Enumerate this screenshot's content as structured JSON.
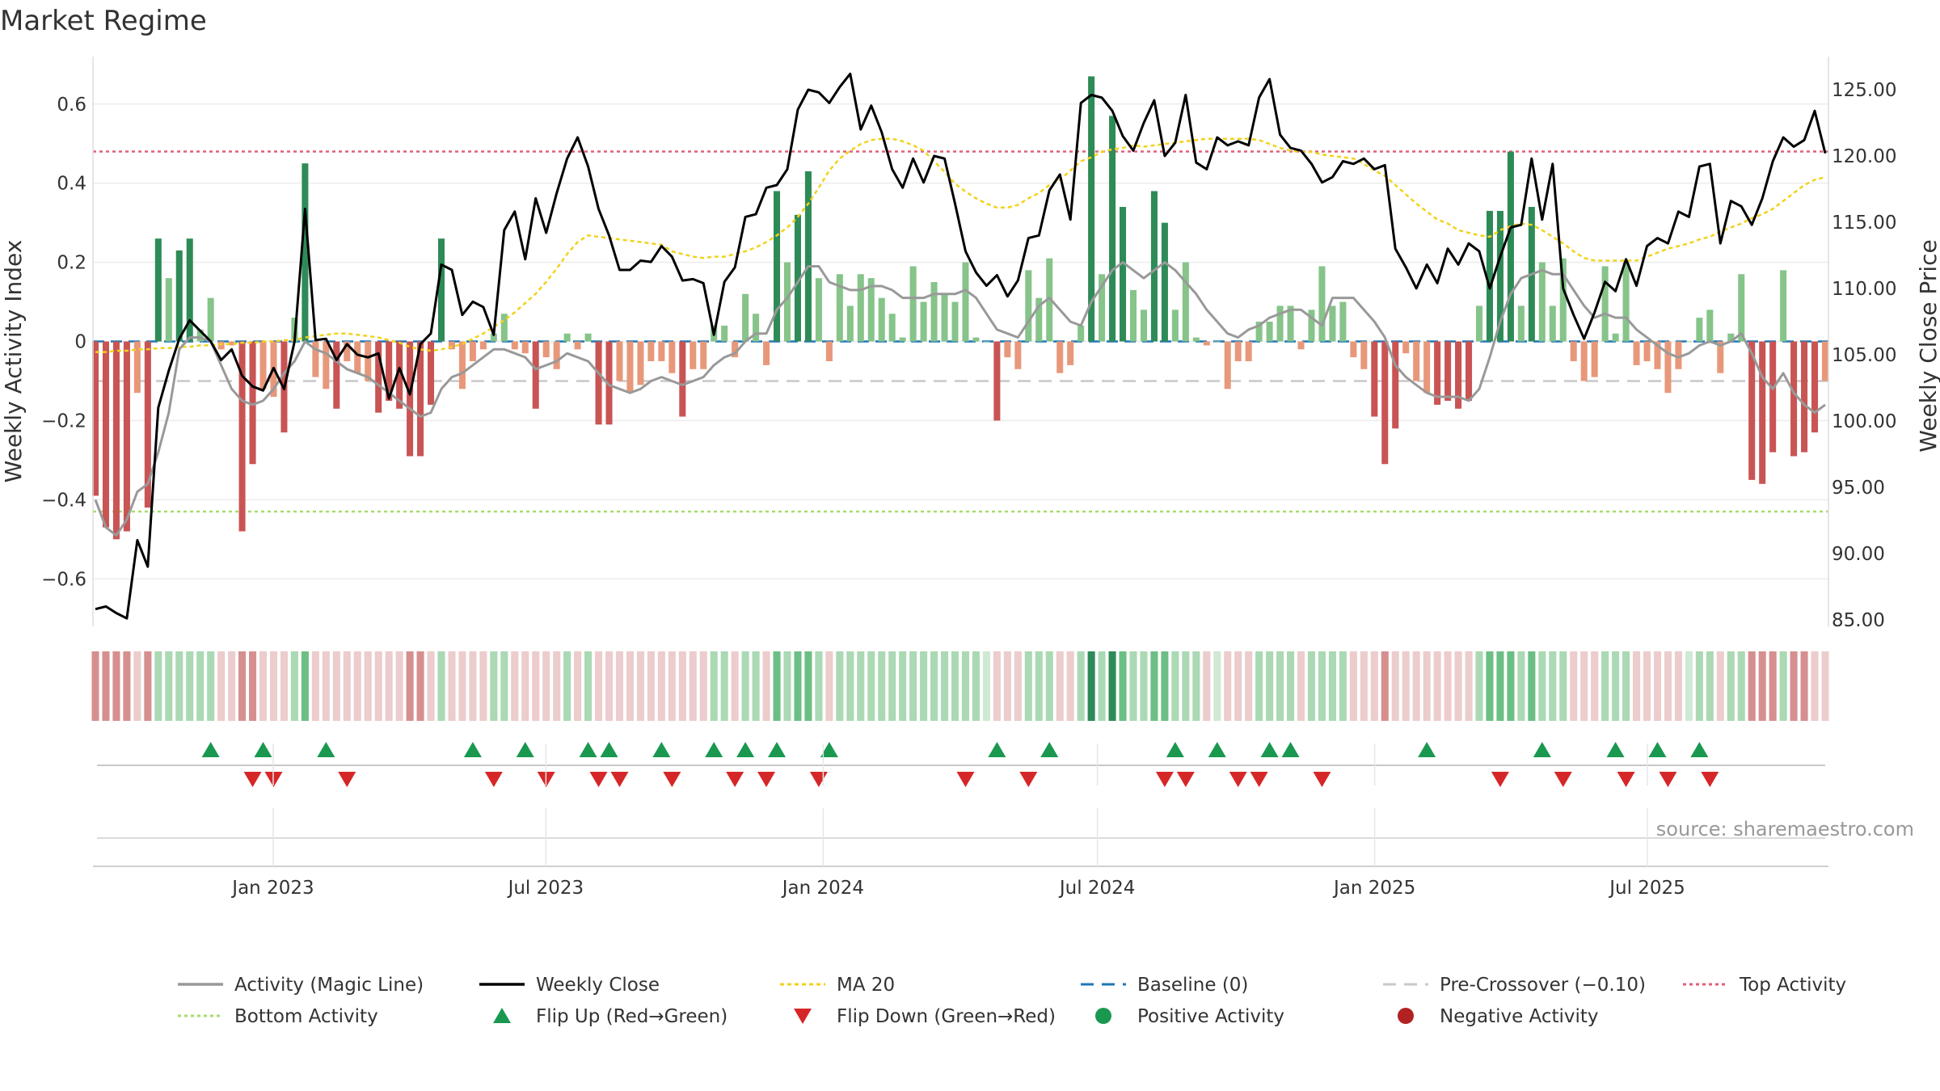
{
  "title": "Market Regime",
  "source": "source: sharemaestro.com",
  "chart_data": {
    "type": "bar",
    "ylabel_left": "Weekly Activity Index",
    "ylabel_right": "Weekly Close Price",
    "ylim_left": [
      -0.72,
      0.72
    ],
    "ylim_right": [
      84.5,
      127.5
    ],
    "yticks_left": [
      -0.6,
      -0.4,
      -0.2,
      0.0,
      0.2,
      0.4,
      0.6
    ],
    "ytick_labels_left": [
      "−0.6",
      "−0.4",
      "−0.2",
      "0",
      "0.2",
      "0.4",
      "0.6"
    ],
    "yticks_right": [
      85,
      90,
      95,
      100,
      105,
      110,
      115,
      120,
      125
    ],
    "ytick_labels_right": [
      "85.00",
      "90.00",
      "95.00",
      "100.00",
      "105.00",
      "110.00",
      "115.00",
      "120.00",
      "125.00"
    ],
    "x_start": "2022-09-05",
    "x_end": "2025-10-27",
    "xticks": [
      {
        "date": "2023-01-01",
        "label": "Jan 2023"
      },
      {
        "date": "2023-07-01",
        "label": "Jul 2023"
      },
      {
        "date": "2024-01-01",
        "label": "Jan 2024"
      },
      {
        "date": "2024-07-01",
        "label": "Jul 2024"
      },
      {
        "date": "2025-01-01",
        "label": "Jan 2025"
      },
      {
        "date": "2025-07-01",
        "label": "Jul 2025"
      }
    ],
    "top_activity": 0.48,
    "bottom_activity": -0.43,
    "pre_crossover": -0.1,
    "baseline": 0.0,
    "grid": true,
    "legend_position": "bottom",
    "activity": [
      -0.39,
      -0.47,
      -0.5,
      -0.48,
      -0.13,
      -0.42,
      0.26,
      0.16,
      0.23,
      0.26,
      0.03,
      0.11,
      -0.02,
      -0.01,
      -0.48,
      -0.31,
      -0.12,
      -0.14,
      -0.23,
      0.06,
      0.45,
      -0.09,
      -0.12,
      -0.17,
      -0.05,
      -0.08,
      -0.1,
      -0.18,
      -0.15,
      -0.17,
      -0.29,
      -0.29,
      -0.16,
      0.26,
      -0.02,
      -0.12,
      -0.05,
      -0.02,
      0.02,
      0.07,
      -0.02,
      -0.03,
      -0.17,
      -0.04,
      -0.07,
      0.02,
      -0.02,
      0.02,
      -0.21,
      -0.21,
      -0.1,
      -0.13,
      -0.11,
      -0.05,
      -0.05,
      -0.08,
      -0.19,
      -0.07,
      -0.07,
      0.04,
      0.04,
      -0.04,
      0.12,
      0.07,
      -0.06,
      0.38,
      0.2,
      0.32,
      0.43,
      0.16,
      -0.05,
      0.17,
      0.09,
      0.17,
      0.16,
      0.11,
      0.07,
      0.01,
      0.19,
      0.1,
      0.15,
      0.12,
      0.1,
      0.2,
      0.01,
      0.0,
      -0.2,
      -0.04,
      -0.07,
      0.18,
      0.11,
      0.21,
      -0.08,
      -0.06,
      0.04,
      0.67,
      0.17,
      0.57,
      0.34,
      0.13,
      0.08,
      0.38,
      0.3,
      0.08,
      0.2,
      0.01,
      -0.01,
      0.0,
      -0.12,
      -0.05,
      -0.05,
      0.05,
      0.05,
      0.09,
      0.09,
      -0.02,
      0.08,
      0.19,
      0.09,
      0.1,
      -0.04,
      -0.07,
      -0.19,
      -0.31,
      -0.22,
      -0.03,
      -0.1,
      -0.13,
      -0.16,
      -0.15,
      -0.17,
      -0.15,
      0.09,
      0.33,
      0.33,
      0.48,
      0.09,
      0.34,
      0.2,
      0.09,
      0.21,
      -0.05,
      -0.1,
      -0.09,
      0.19,
      0.02,
      0.2,
      -0.06,
      -0.05,
      -0.07,
      -0.13,
      -0.07,
      0.0,
      0.06,
      0.08,
      -0.08,
      0.02,
      0.17,
      -0.35,
      -0.36,
      -0.28,
      0.18,
      -0.29,
      -0.28,
      -0.23,
      -0.1
    ],
    "magic_line": [
      -0.4,
      -0.47,
      -0.49,
      -0.45,
      -0.38,
      -0.36,
      -0.28,
      -0.18,
      -0.02,
      0.01,
      0.01,
      0.0,
      -0.06,
      -0.12,
      -0.15,
      -0.16,
      -0.15,
      -0.12,
      -0.08,
      -0.05,
      0.0,
      -0.02,
      -0.03,
      -0.05,
      -0.07,
      -0.08,
      -0.09,
      -0.11,
      -0.13,
      -0.15,
      -0.17,
      -0.19,
      -0.18,
      -0.12,
      -0.09,
      -0.08,
      -0.06,
      -0.04,
      -0.02,
      -0.02,
      -0.03,
      -0.04,
      -0.07,
      -0.06,
      -0.05,
      -0.03,
      -0.04,
      -0.05,
      -0.08,
      -0.11,
      -0.12,
      -0.13,
      -0.12,
      -0.1,
      -0.09,
      -0.1,
      -0.11,
      -0.1,
      -0.09,
      -0.06,
      -0.04,
      -0.03,
      0.0,
      0.02,
      0.02,
      0.08,
      0.11,
      0.15,
      0.19,
      0.19,
      0.15,
      0.14,
      0.13,
      0.13,
      0.14,
      0.14,
      0.13,
      0.11,
      0.11,
      0.11,
      0.12,
      0.12,
      0.12,
      0.13,
      0.11,
      0.07,
      0.03,
      0.02,
      0.01,
      0.05,
      0.09,
      0.11,
      0.08,
      0.05,
      0.04,
      0.1,
      0.14,
      0.18,
      0.2,
      0.18,
      0.16,
      0.18,
      0.2,
      0.18,
      0.15,
      0.12,
      0.08,
      0.05,
      0.02,
      0.01,
      0.03,
      0.04,
      0.06,
      0.07,
      0.08,
      0.08,
      0.06,
      0.04,
      0.11,
      0.11,
      0.11,
      0.08,
      0.05,
      0.01,
      -0.06,
      -0.09,
      -0.11,
      -0.13,
      -0.14,
      -0.14,
      -0.14,
      -0.15,
      -0.12,
      -0.04,
      0.05,
      0.12,
      0.16,
      0.17,
      0.18,
      0.17,
      0.17,
      0.13,
      0.09,
      0.06,
      0.07,
      0.06,
      0.06,
      0.03,
      0.01,
      -0.01,
      -0.03,
      -0.04,
      -0.03,
      -0.01,
      0.0,
      -0.01,
      0.0,
      0.02,
      -0.03,
      -0.09,
      -0.12,
      -0.08,
      -0.13,
      -0.16,
      -0.18,
      -0.16
    ],
    "close": [
      85.8,
      86.0,
      85.5,
      85.1,
      91.0,
      89.0,
      101.0,
      103.8,
      106.2,
      107.6,
      106.8,
      106.0,
      104.6,
      105.4,
      103.4,
      102.6,
      102.3,
      104.0,
      102.4,
      106.0,
      116.0,
      106.1,
      106.2,
      104.6,
      105.8,
      105.0,
      104.8,
      105.1,
      101.7,
      104.0,
      102.0,
      105.8,
      106.6,
      111.8,
      111.4,
      108.0,
      109.0,
      108.6,
      106.5,
      114.4,
      115.8,
      112.2,
      116.8,
      114.2,
      117.2,
      119.8,
      121.4,
      119.2,
      116.0,
      114.0,
      111.4,
      111.4,
      112.1,
      112.0,
      113.2,
      112.4,
      110.6,
      110.7,
      110.4,
      106.5,
      110.5,
      111.6,
      115.4,
      115.6,
      117.6,
      117.8,
      119.0,
      123.5,
      125.0,
      124.8,
      124.0,
      125.2,
      126.2,
      122.0,
      123.8,
      121.8,
      119.0,
      117.6,
      119.8,
      118.0,
      120.0,
      119.8,
      116.4,
      112.8,
      111.2,
      110.2,
      111.0,
      109.4,
      110.6,
      113.8,
      114.0,
      117.4,
      118.6,
      115.2,
      124.0,
      124.6,
      124.4,
      123.4,
      121.5,
      120.4,
      122.5,
      124.2,
      120.0,
      121.0,
      124.6,
      119.5,
      119.0,
      121.4,
      120.8,
      121.1,
      120.8,
      124.4,
      125.8,
      121.6,
      120.6,
      120.4,
      119.4,
      118.0,
      118.4,
      119.6,
      119.4,
      119.8,
      119.0,
      119.3,
      113.0,
      111.6,
      110.0,
      111.8,
      110.4,
      113.0,
      111.8,
      113.4,
      112.8,
      110.0,
      112.4,
      114.6,
      114.8,
      119.8,
      115.2,
      119.4,
      110.0,
      108.0,
      106.2,
      108.2,
      110.5,
      109.8,
      112.2,
      110.2,
      113.2,
      113.8,
      113.4,
      115.8,
      115.4,
      119.2,
      119.4,
      113.4,
      116.6,
      116.2,
      114.8,
      116.8,
      119.6,
      121.4,
      120.7,
      121.2,
      123.4,
      120.2
    ],
    "ma20": [
      105.2,
      105.2,
      105.3,
      105.3,
      105.4,
      105.4,
      105.5,
      105.5,
      105.6,
      105.6,
      105.7,
      105.7,
      105.8,
      105.8,
      105.9,
      105.9,
      106.0,
      106.0,
      106.1,
      106.1,
      106.3,
      106.4,
      106.5,
      106.6,
      106.6,
      106.5,
      106.4,
      106.3,
      106.1,
      105.9,
      105.6,
      105.4,
      105.3,
      105.4,
      105.6,
      105.8,
      106.2,
      106.6,
      107.1,
      107.6,
      108.2,
      108.9,
      109.6,
      110.5,
      111.5,
      112.6,
      113.5,
      114.0,
      113.9,
      113.8,
      113.7,
      113.6,
      113.5,
      113.4,
      113.3,
      112.8,
      112.6,
      112.4,
      112.3,
      112.4,
      112.4,
      112.6,
      112.8,
      113.1,
      113.5,
      114.0,
      114.6,
      115.4,
      116.4,
      117.6,
      118.9,
      119.8,
      120.4,
      120.9,
      121.2,
      121.3,
      121.3,
      121.1,
      120.8,
      120.4,
      119.6,
      118.8,
      117.9,
      117.3,
      116.8,
      116.4,
      116.1,
      116.1,
      116.3,
      116.8,
      117.2,
      117.8,
      118.2,
      118.9,
      119.6,
      119.9,
      120.3,
      120.5,
      120.6,
      120.8,
      120.7,
      120.8,
      120.9,
      121.0,
      121.1,
      121.2,
      121.3,
      121.3,
      121.3,
      121.3,
      121.3,
      121.2,
      120.9,
      120.6,
      120.4,
      120.3,
      120.3,
      120.1,
      120.0,
      119.9,
      119.8,
      119.4,
      118.9,
      118.5,
      117.8,
      117.1,
      116.4,
      115.8,
      115.2,
      114.9,
      114.4,
      114.2,
      114.0,
      113.9,
      114.4,
      114.7,
      114.9,
      114.8,
      114.4,
      113.9,
      113.4,
      112.8,
      112.3,
      112.1,
      112.1,
      112.1,
      112.1,
      112.1,
      112.4,
      112.7,
      113.0,
      113.2,
      113.4,
      113.7,
      113.9,
      114.3,
      114.6,
      114.9,
      115.3,
      115.6,
      116.0,
      116.6,
      117.2,
      117.8,
      118.2,
      118.4
    ],
    "flip_up": [
      11,
      16,
      22,
      36,
      41,
      47,
      49,
      54,
      59,
      62,
      65,
      70,
      86,
      91,
      103,
      107,
      112,
      114,
      127,
      138,
      145,
      149,
      153
    ],
    "flip_down": [
      15,
      17,
      24,
      38,
      43,
      48,
      50,
      55,
      61,
      64,
      69,
      83,
      89,
      102,
      104,
      109,
      111,
      117,
      134,
      140,
      146,
      150,
      154
    ],
    "series": [
      {
        "name": "Activity (Magic Line)",
        "color": "#999999"
      },
      {
        "name": "Weekly Close",
        "color": "#000000"
      },
      {
        "name": "MA 20",
        "color": "#f2d21b"
      },
      {
        "name": "Baseline (0)",
        "color": "#1f77b4"
      },
      {
        "name": "Pre-Crossover (−0.10)",
        "color": "#c8c8c8"
      },
      {
        "name": "Top Activity",
        "color": "#e0607a"
      },
      {
        "name": "Bottom Activity",
        "color": "#a6dd6a"
      },
      {
        "name": "Flip Up (Red→Green)",
        "color": "#1a9850"
      },
      {
        "name": "Flip Down (Green→Red)",
        "color": "#d62728"
      },
      {
        "name": "Positive Activity",
        "color": "#1a9850"
      },
      {
        "name": "Negative Activity",
        "color": "#b22222"
      }
    ]
  }
}
